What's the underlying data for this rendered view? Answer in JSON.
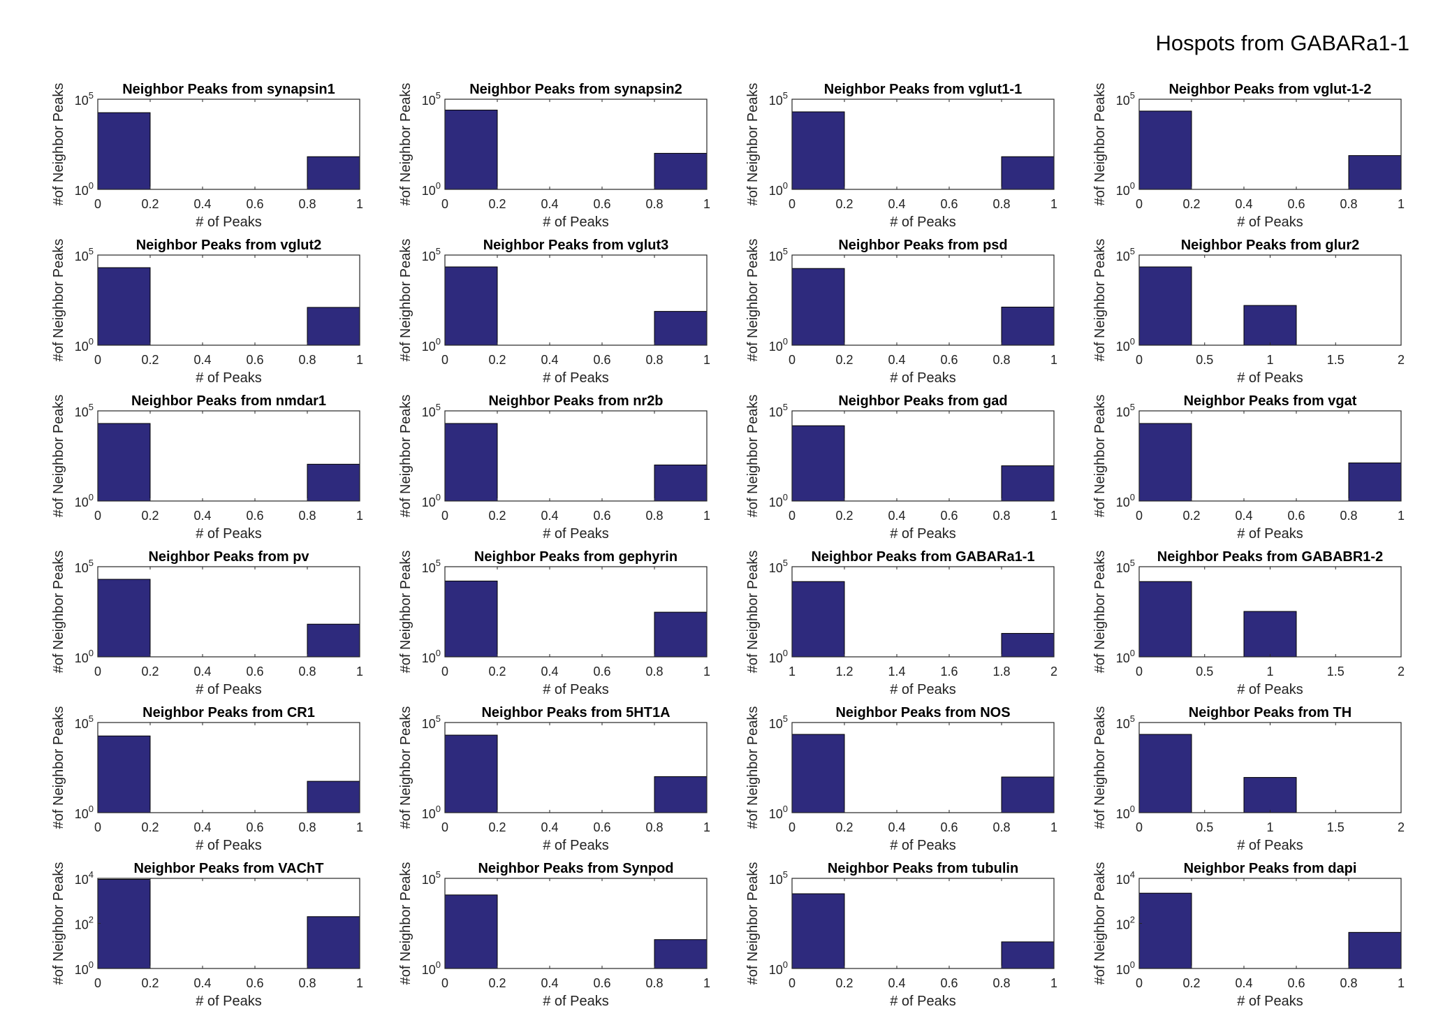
{
  "figure": {
    "suptitle": "Hospots from GABARa1-1",
    "bar_color": "#2e2a7d"
  },
  "chart_data": [
    {
      "type": "bar",
      "title": "Neighbor Peaks from synapsin1",
      "xlabel": "# of Peaks",
      "ylabel": "#of Neighbor Peaks",
      "xlim": [
        0,
        1
      ],
      "xticks": [
        "0",
        "0.2",
        "0.4",
        "0.6",
        "0.8",
        "1"
      ],
      "yscale": "log",
      "ylim_exp": [
        0,
        5
      ],
      "bins": [
        {
          "x0": 0,
          "x1": 0.2,
          "value": 18000
        },
        {
          "x0": 0.8,
          "x1": 1,
          "value": 65
        }
      ]
    },
    {
      "type": "bar",
      "title": "Neighbor Peaks from synapsin2",
      "xlabel": "# of Peaks",
      "ylabel": "#of Neighbor Peaks",
      "xlim": [
        0,
        1
      ],
      "xticks": [
        "0",
        "0.2",
        "0.4",
        "0.6",
        "0.8",
        "1"
      ],
      "yscale": "log",
      "ylim_exp": [
        0,
        5
      ],
      "bins": [
        {
          "x0": 0,
          "x1": 0.2,
          "value": 25000
        },
        {
          "x0": 0.8,
          "x1": 1,
          "value": 100
        }
      ]
    },
    {
      "type": "bar",
      "title": "Neighbor Peaks from vglut1-1",
      "xlabel": "# of Peaks",
      "ylabel": "#of Neighbor Peaks",
      "xlim": [
        0,
        1
      ],
      "xticks": [
        "0",
        "0.2",
        "0.4",
        "0.6",
        "0.8",
        "1"
      ],
      "yscale": "log",
      "ylim_exp": [
        0,
        5
      ],
      "bins": [
        {
          "x0": 0,
          "x1": 0.2,
          "value": 20000
        },
        {
          "x0": 0.8,
          "x1": 1,
          "value": 65
        }
      ]
    },
    {
      "type": "bar",
      "title": "Neighbor Peaks from vglut-1-2",
      "xlabel": "# of Peaks",
      "ylabel": "#of Neighbor Peaks",
      "xlim": [
        0,
        1
      ],
      "xticks": [
        "0",
        "0.2",
        "0.4",
        "0.6",
        "0.8",
        "1"
      ],
      "yscale": "log",
      "ylim_exp": [
        0,
        5
      ],
      "bins": [
        {
          "x0": 0,
          "x1": 0.2,
          "value": 22000
        },
        {
          "x0": 0.8,
          "x1": 1,
          "value": 75
        }
      ]
    },
    {
      "type": "bar",
      "title": "Neighbor Peaks from vglut2",
      "xlabel": "# of Peaks",
      "ylabel": "#of Neighbor Peaks",
      "xlim": [
        0,
        1
      ],
      "xticks": [
        "0",
        "0.2",
        "0.4",
        "0.6",
        "0.8",
        "1"
      ],
      "yscale": "log",
      "ylim_exp": [
        0,
        5
      ],
      "bins": [
        {
          "x0": 0,
          "x1": 0.2,
          "value": 20000
        },
        {
          "x0": 0.8,
          "x1": 1,
          "value": 125
        }
      ]
    },
    {
      "type": "bar",
      "title": "Neighbor Peaks from vglut3",
      "xlabel": "# of Peaks",
      "ylabel": "#of Neighbor Peaks",
      "xlim": [
        0,
        1
      ],
      "xticks": [
        "0",
        "0.2",
        "0.4",
        "0.6",
        "0.8",
        "1"
      ],
      "yscale": "log",
      "ylim_exp": [
        0,
        5
      ],
      "bins": [
        {
          "x0": 0,
          "x1": 0.2,
          "value": 22000
        },
        {
          "x0": 0.8,
          "x1": 1,
          "value": 75
        }
      ]
    },
    {
      "type": "bar",
      "title": "Neighbor Peaks from psd",
      "xlabel": "# of Peaks",
      "ylabel": "#of Neighbor Peaks",
      "xlim": [
        0,
        1
      ],
      "xticks": [
        "0",
        "0.2",
        "0.4",
        "0.6",
        "0.8",
        "1"
      ],
      "yscale": "log",
      "ylim_exp": [
        0,
        5
      ],
      "bins": [
        {
          "x0": 0,
          "x1": 0.2,
          "value": 18000
        },
        {
          "x0": 0.8,
          "x1": 1,
          "value": 130
        }
      ]
    },
    {
      "type": "bar",
      "title": "Neighbor Peaks from glur2",
      "xlabel": "# of Peaks",
      "ylabel": "#of Neighbor Peaks",
      "xlim": [
        0,
        2
      ],
      "xticks": [
        "0",
        "0.5",
        "1",
        "1.5",
        "2"
      ],
      "yscale": "log",
      "ylim_exp": [
        0,
        5
      ],
      "bins": [
        {
          "x0": 0,
          "x1": 0.4,
          "value": 22000
        },
        {
          "x0": 0.8,
          "x1": 1.2,
          "value": 160
        },
        {
          "x0": 1.6,
          "x1": 2,
          "value": 1
        }
      ]
    },
    {
      "type": "bar",
      "title": "Neighbor Peaks from nmdar1",
      "xlabel": "# of Peaks",
      "ylabel": "#of Neighbor Peaks",
      "xlim": [
        0,
        1
      ],
      "xticks": [
        "0",
        "0.2",
        "0.4",
        "0.6",
        "0.8",
        "1"
      ],
      "yscale": "log",
      "ylim_exp": [
        0,
        5
      ],
      "bins": [
        {
          "x0": 0,
          "x1": 0.2,
          "value": 20000
        },
        {
          "x0": 0.8,
          "x1": 1,
          "value": 110
        }
      ]
    },
    {
      "type": "bar",
      "title": "Neighbor Peaks from nr2b",
      "xlabel": "# of Peaks",
      "ylabel": "#of Neighbor Peaks",
      "xlim": [
        0,
        1
      ],
      "xticks": [
        "0",
        "0.2",
        "0.4",
        "0.6",
        "0.8",
        "1"
      ],
      "yscale": "log",
      "ylim_exp": [
        0,
        5
      ],
      "bins": [
        {
          "x0": 0,
          "x1": 0.2,
          "value": 20000
        },
        {
          "x0": 0.8,
          "x1": 1,
          "value": 100
        }
      ]
    },
    {
      "type": "bar",
      "title": "Neighbor Peaks from gad",
      "xlabel": "# of Peaks",
      "ylabel": "#of Neighbor Peaks",
      "xlim": [
        0,
        1
      ],
      "xticks": [
        "0",
        "0.2",
        "0.4",
        "0.6",
        "0.8",
        "1"
      ],
      "yscale": "log",
      "ylim_exp": [
        0,
        5
      ],
      "bins": [
        {
          "x0": 0,
          "x1": 0.2,
          "value": 15000
        },
        {
          "x0": 0.8,
          "x1": 1,
          "value": 90
        }
      ]
    },
    {
      "type": "bar",
      "title": "Neighbor Peaks from vgat",
      "xlabel": "# of Peaks",
      "ylabel": "#of Neighbor Peaks",
      "xlim": [
        0,
        1
      ],
      "xticks": [
        "0",
        "0.2",
        "0.4",
        "0.6",
        "0.8",
        "1"
      ],
      "yscale": "log",
      "ylim_exp": [
        0,
        5
      ],
      "bins": [
        {
          "x0": 0,
          "x1": 0.2,
          "value": 20000
        },
        {
          "x0": 0.8,
          "x1": 1,
          "value": 130
        }
      ]
    },
    {
      "type": "bar",
      "title": "Neighbor Peaks from pv",
      "xlabel": "# of Peaks",
      "ylabel": "#of Neighbor Peaks",
      "xlim": [
        0,
        1
      ],
      "xticks": [
        "0",
        "0.2",
        "0.4",
        "0.6",
        "0.8",
        "1"
      ],
      "yscale": "log",
      "ylim_exp": [
        0,
        5
      ],
      "bins": [
        {
          "x0": 0,
          "x1": 0.2,
          "value": 20000
        },
        {
          "x0": 0.8,
          "x1": 1,
          "value": 65
        }
      ]
    },
    {
      "type": "bar",
      "title": "Neighbor Peaks from gephyrin",
      "xlabel": "# of Peaks",
      "ylabel": "#of Neighbor Peaks",
      "xlim": [
        0,
        1
      ],
      "xticks": [
        "0",
        "0.2",
        "0.4",
        "0.6",
        "0.8",
        "1"
      ],
      "yscale": "log",
      "ylim_exp": [
        0,
        5
      ],
      "bins": [
        {
          "x0": 0,
          "x1": 0.2,
          "value": 16000
        },
        {
          "x0": 0.8,
          "x1": 1,
          "value": 300
        }
      ]
    },
    {
      "type": "bar",
      "title": "Neighbor Peaks from GABARa1-1",
      "xlabel": "# of Peaks",
      "ylabel": "#of Neighbor Peaks",
      "xlim": [
        1,
        2
      ],
      "xticks": [
        "1",
        "1.2",
        "1.4",
        "1.6",
        "1.8",
        "2"
      ],
      "yscale": "log",
      "ylim_exp": [
        0,
        5
      ],
      "bins": [
        {
          "x0": 1,
          "x1": 1.2,
          "value": 15000
        },
        {
          "x0": 1.8,
          "x1": 2,
          "value": 20
        }
      ]
    },
    {
      "type": "bar",
      "title": "Neighbor Peaks from GABABR1-2",
      "xlabel": "# of Peaks",
      "ylabel": "#of Neighbor Peaks",
      "xlim": [
        0,
        2
      ],
      "xticks": [
        "0",
        "0.5",
        "1",
        "1.5",
        "2"
      ],
      "yscale": "log",
      "ylim_exp": [
        0,
        5
      ],
      "bins": [
        {
          "x0": 0,
          "x1": 0.4,
          "value": 15000
        },
        {
          "x0": 0.8,
          "x1": 1.2,
          "value": 330
        }
      ]
    },
    {
      "type": "bar",
      "title": "Neighbor Peaks from CR1",
      "xlabel": "# of Peaks",
      "ylabel": "#of Neighbor Peaks",
      "xlim": [
        0,
        1
      ],
      "xticks": [
        "0",
        "0.2",
        "0.4",
        "0.6",
        "0.8",
        "1"
      ],
      "yscale": "log",
      "ylim_exp": [
        0,
        5
      ],
      "bins": [
        {
          "x0": 0,
          "x1": 0.2,
          "value": 18000
        },
        {
          "x0": 0.8,
          "x1": 1,
          "value": 55
        }
      ]
    },
    {
      "type": "bar",
      "title": "Neighbor Peaks from 5HT1A",
      "xlabel": "# of Peaks",
      "ylabel": "#of Neighbor Peaks",
      "xlim": [
        0,
        1
      ],
      "xticks": [
        "0",
        "0.2",
        "0.4",
        "0.6",
        "0.8",
        "1"
      ],
      "yscale": "log",
      "ylim_exp": [
        0,
        5
      ],
      "bins": [
        {
          "x0": 0,
          "x1": 0.2,
          "value": 20000
        },
        {
          "x0": 0.8,
          "x1": 1,
          "value": 100
        }
      ]
    },
    {
      "type": "bar",
      "title": "Neighbor Peaks from NOS",
      "xlabel": "# of Peaks",
      "ylabel": "#of Neighbor Peaks",
      "xlim": [
        0,
        1
      ],
      "xticks": [
        "0",
        "0.2",
        "0.4",
        "0.6",
        "0.8",
        "1"
      ],
      "yscale": "log",
      "ylim_exp": [
        0,
        5
      ],
      "bins": [
        {
          "x0": 0,
          "x1": 0.2,
          "value": 22000
        },
        {
          "x0": 0.8,
          "x1": 1,
          "value": 95
        }
      ]
    },
    {
      "type": "bar",
      "title": "Neighbor Peaks from TH",
      "xlabel": "# of Peaks",
      "ylabel": "#of Neighbor Peaks",
      "xlim": [
        0,
        2
      ],
      "xticks": [
        "0",
        "0.5",
        "1",
        "1.5",
        "2"
      ],
      "yscale": "log",
      "ylim_exp": [
        0,
        5
      ],
      "bins": [
        {
          "x0": 0,
          "x1": 0.4,
          "value": 22000
        },
        {
          "x0": 0.8,
          "x1": 1.2,
          "value": 90
        }
      ]
    },
    {
      "type": "bar",
      "title": "Neighbor Peaks from VAChT",
      "xlabel": "# of Peaks",
      "ylabel": "#of Neighbor Peaks",
      "xlim": [
        0,
        1
      ],
      "xticks": [
        "0",
        "0.2",
        "0.4",
        "0.6",
        "0.8",
        "1"
      ],
      "yscale": "log",
      "ylim_exp": [
        0,
        4
      ],
      "bins": [
        {
          "x0": 0,
          "x1": 0.2,
          "value": 9000
        },
        {
          "x0": 0.8,
          "x1": 1,
          "value": 200
        }
      ]
    },
    {
      "type": "bar",
      "title": "Neighbor Peaks from Synpod",
      "xlabel": "# of Peaks",
      "ylabel": "#of Neighbor Peaks",
      "xlim": [
        0,
        1
      ],
      "xticks": [
        "0",
        "0.2",
        "0.4",
        "0.6",
        "0.8",
        "1"
      ],
      "yscale": "log",
      "ylim_exp": [
        0,
        5
      ],
      "bins": [
        {
          "x0": 0,
          "x1": 0.2,
          "value": 12000
        },
        {
          "x0": 0.8,
          "x1": 1,
          "value": 40
        }
      ]
    },
    {
      "type": "bar",
      "title": "Neighbor Peaks from tubulin",
      "xlabel": "# of Peaks",
      "ylabel": "#of Neighbor Peaks",
      "xlim": [
        0,
        1
      ],
      "xticks": [
        "0",
        "0.2",
        "0.4",
        "0.6",
        "0.8",
        "1"
      ],
      "yscale": "log",
      "ylim_exp": [
        0,
        5
      ],
      "bins": [
        {
          "x0": 0,
          "x1": 0.2,
          "value": 14000
        },
        {
          "x0": 0.8,
          "x1": 1,
          "value": 30
        }
      ]
    },
    {
      "type": "bar",
      "title": "Neighbor Peaks from dapi",
      "xlabel": "# of Peaks",
      "ylabel": "#of Neighbor Peaks",
      "xlim": [
        0,
        1
      ],
      "xticks": [
        "0",
        "0.2",
        "0.4",
        "0.6",
        "0.8",
        "1"
      ],
      "yscale": "log",
      "ylim_exp": [
        0,
        4
      ],
      "bins": [
        {
          "x0": 0,
          "x1": 0.2,
          "value": 2200
        },
        {
          "x0": 0.8,
          "x1": 1,
          "value": 40
        }
      ]
    }
  ]
}
